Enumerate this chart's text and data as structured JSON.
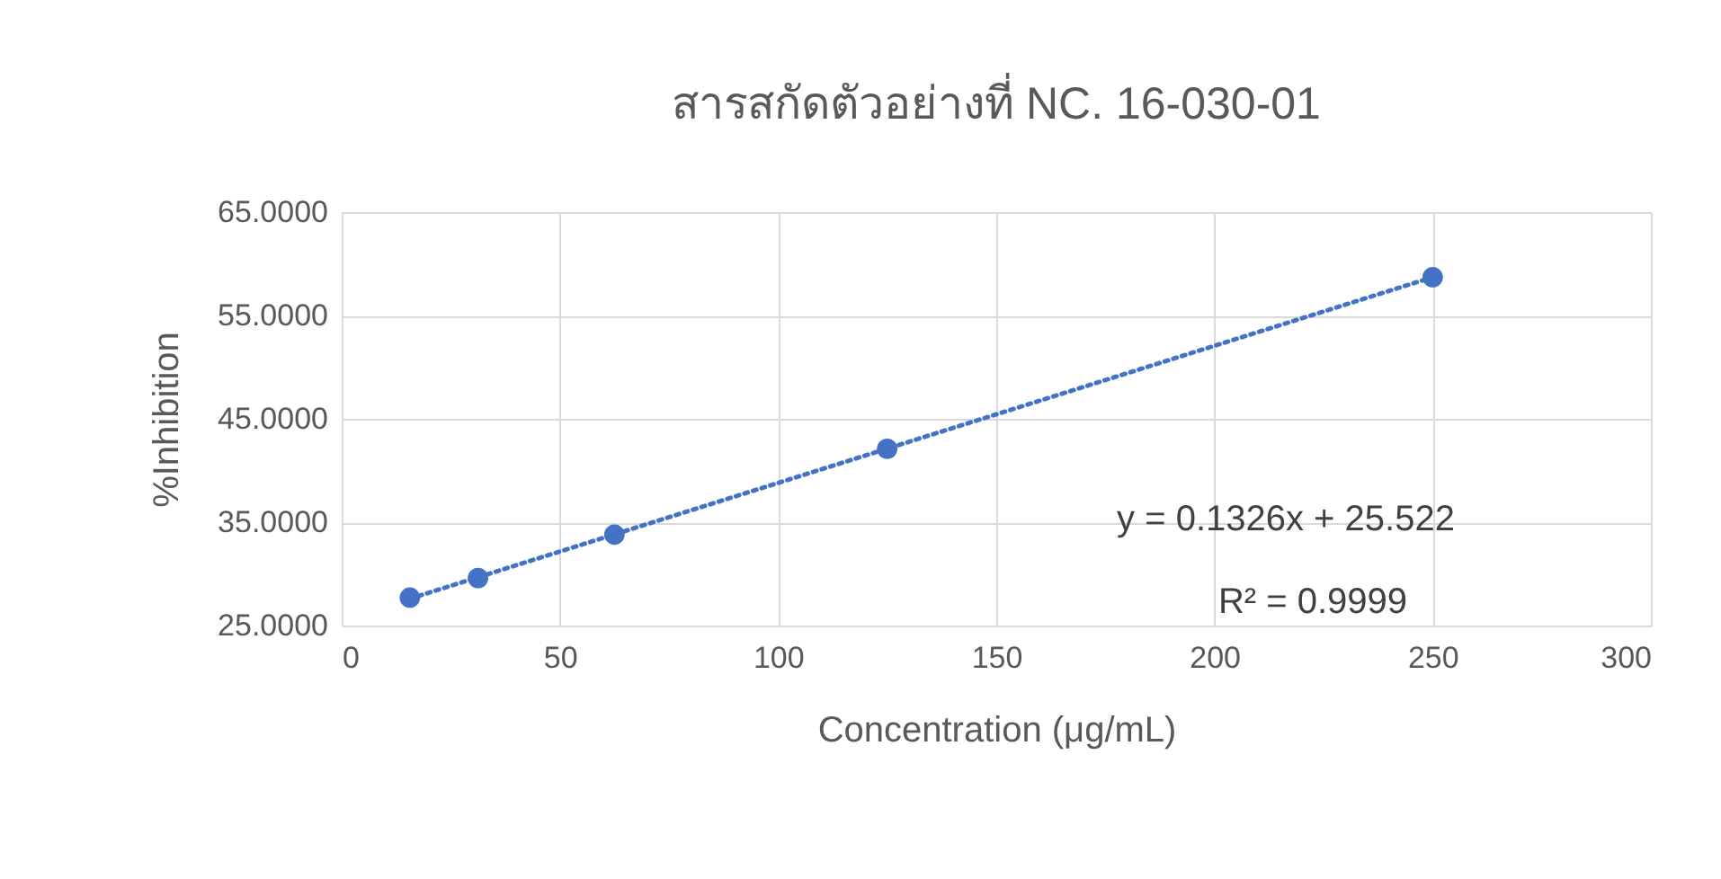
{
  "chart_data": {
    "type": "scatter",
    "title": "สารสกัดตัวอย่างที่ NC. 16-030-01",
    "xlabel": "Concentration (μg/mL)",
    "ylabel": "%Inhibition",
    "x": [
      15.625,
      31.25,
      62.5,
      125,
      250
    ],
    "series": [
      {
        "color": "#4472c4",
        "values": [
          27.7,
          29.6,
          33.8,
          42.1,
          58.7
        ]
      },
      {
        "type": "line",
        "color": "#4472c4",
        "x": [
          15.625,
          250
        ],
        "values": [
          27.6,
          58.7
        ],
        "line_style": "dotted",
        "marker": "none"
      }
    ],
    "xlim": [
      0,
      300
    ],
    "xticks": [
      0,
      50,
      100,
      150,
      200,
      250,
      300
    ],
    "ylim": [
      25,
      65
    ],
    "yticks": [
      {
        "value": 25,
        "label": "25.0000"
      },
      {
        "value": 35,
        "label": "35.0000"
      },
      {
        "value": 45,
        "label": "45.0000"
      },
      {
        "value": 55,
        "label": "55.0000"
      },
      {
        "value": 65,
        "label": "65.0000"
      }
    ],
    "grid": true,
    "marker": "circle",
    "annotations": [
      "y = 0.1326x + 25.522",
      "R² = 0.9999"
    ]
  }
}
